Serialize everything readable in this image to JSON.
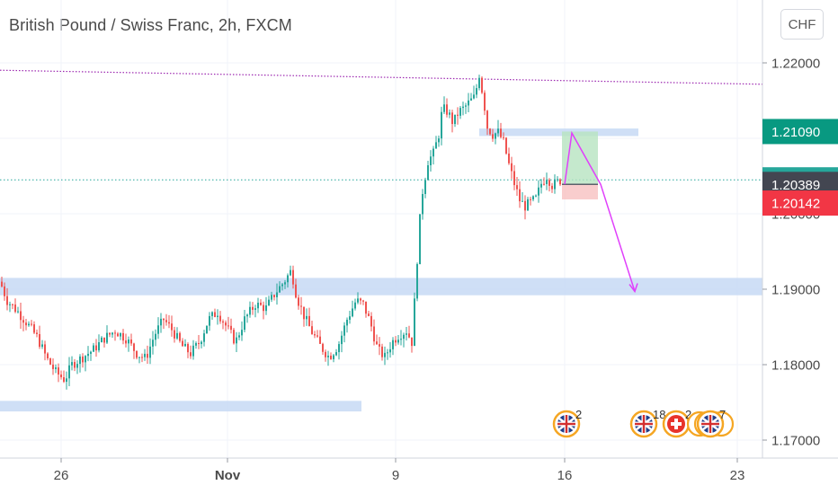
{
  "title": "British Pound / Swiss Franc, 2h, FXCM",
  "currency_button": "CHF",
  "chart_data": {
    "type": "candlestick",
    "y_axis_labels": [
      "1.22000",
      "1.21000",
      "1.20000",
      "1.19000",
      "1.18000",
      "1.17000"
    ],
    "y_axis_values": [
      1.22,
      1.21,
      1.2,
      1.19,
      1.18,
      1.17
    ],
    "ylim": [
      1.1685,
      1.2238
    ],
    "x_axis_labels": [
      "26",
      "Nov",
      "9",
      "16",
      "23"
    ],
    "price_tags": [
      {
        "label": "1.21090",
        "value": 1.2109,
        "color": "#089981"
      },
      {
        "label": "1.20450",
        "value": 1.2045,
        "color": "#26a69a"
      },
      {
        "label": "1.20389",
        "value": 1.20389,
        "color": "#434651"
      },
      {
        "label": "1.20142",
        "value": 1.20142,
        "color": "#f23645"
      }
    ],
    "candle_path": [
      [
        0,
        1.191
      ],
      [
        8,
        1.1885
      ],
      [
        20,
        1.187
      ],
      [
        30,
        1.1855
      ],
      [
        42,
        1.1835
      ],
      [
        52,
        1.1808
      ],
      [
        62,
        1.179
      ],
      [
        72,
        1.178
      ],
      [
        80,
        1.18
      ],
      [
        92,
        1.181
      ],
      [
        104,
        1.182
      ],
      [
        116,
        1.1835
      ],
      [
        128,
        1.1845
      ],
      [
        140,
        1.1835
      ],
      [
        152,
        1.1815
      ],
      [
        162,
        1.1808
      ],
      [
        172,
        1.184
      ],
      [
        182,
        1.186
      ],
      [
        192,
        1.1845
      ],
      [
        202,
        1.1825
      ],
      [
        212,
        1.1815
      ],
      [
        222,
        1.183
      ],
      [
        232,
        1.186
      ],
      [
        242,
        1.187
      ],
      [
        252,
        1.185
      ],
      [
        262,
        1.183
      ],
      [
        272,
        1.186
      ],
      [
        284,
        1.188
      ],
      [
        296,
        1.1875
      ],
      [
        306,
        1.1895
      ],
      [
        316,
        1.191
      ],
      [
        324,
        1.1925
      ],
      [
        330,
        1.189
      ],
      [
        338,
        1.1865
      ],
      [
        346,
        1.1845
      ],
      [
        356,
        1.1825
      ],
      [
        366,
        1.181
      ],
      [
        376,
        1.1825
      ],
      [
        386,
        1.186
      ],
      [
        396,
        1.1885
      ],
      [
        404,
        1.188
      ],
      [
        412,
        1.1855
      ],
      [
        420,
        1.182
      ],
      [
        428,
        1.181
      ],
      [
        436,
        1.183
      ],
      [
        444,
        1.184
      ],
      [
        452,
        1.1845
      ],
      [
        458,
        1.183
      ],
      [
        462,
        1.19
      ],
      [
        466,
        1.198
      ],
      [
        470,
        1.203
      ],
      [
        476,
        1.207
      ],
      [
        482,
        1.208
      ],
      [
        488,
        1.2105
      ],
      [
        492,
        1.214
      ],
      [
        498,
        1.2135
      ],
      [
        504,
        1.212
      ],
      [
        510,
        1.2135
      ],
      [
        516,
        1.214
      ],
      [
        522,
        1.2148
      ],
      [
        528,
        1.2155
      ],
      [
        533,
        1.2185
      ],
      [
        538,
        1.215
      ],
      [
        542,
        1.2115
      ],
      [
        548,
        1.2105
      ],
      [
        554,
        1.2108
      ],
      [
        560,
        1.2095
      ],
      [
        566,
        1.2065
      ],
      [
        572,
        1.204
      ],
      [
        578,
        1.2018
      ],
      [
        584,
        1.201
      ],
      [
        590,
        1.2015
      ],
      [
        596,
        1.202
      ],
      [
        602,
        1.204
      ],
      [
        608,
        1.205
      ],
      [
        614,
        1.2038
      ],
      [
        620,
        1.2042
      ],
      [
        624,
        1.2045
      ]
    ],
    "horizontal_lines": [
      {
        "value": 1.2045,
        "color": "#26a69a",
        "style": "dotted"
      }
    ],
    "trend_line": {
      "color": "#9c27b0",
      "style": "dotted",
      "from": 1.2195,
      "to": 1.218
    },
    "zones": [
      {
        "from": 1.1892,
        "to": 1.1915,
        "color": "#c7d9f5"
      },
      {
        "from": 1.1738,
        "to": 1.1752,
        "color": "#c7d9f5"
      },
      {
        "from": 1.2103,
        "to": 1.2113,
        "color": "#c7d9f5"
      }
    ],
    "position": {
      "entry": 1.2039,
      "target": 1.2109,
      "stop": 1.2019
    },
    "projection": [
      1.2039,
      1.2107,
      1.2039,
      1.1897
    ],
    "events": [
      {
        "flag": "uk",
        "count": "2"
      },
      {
        "flag": "uk",
        "count": "18"
      },
      {
        "flag": "ch",
        "count": "2"
      },
      {
        "flag": "multi",
        "count": "7"
      }
    ]
  }
}
